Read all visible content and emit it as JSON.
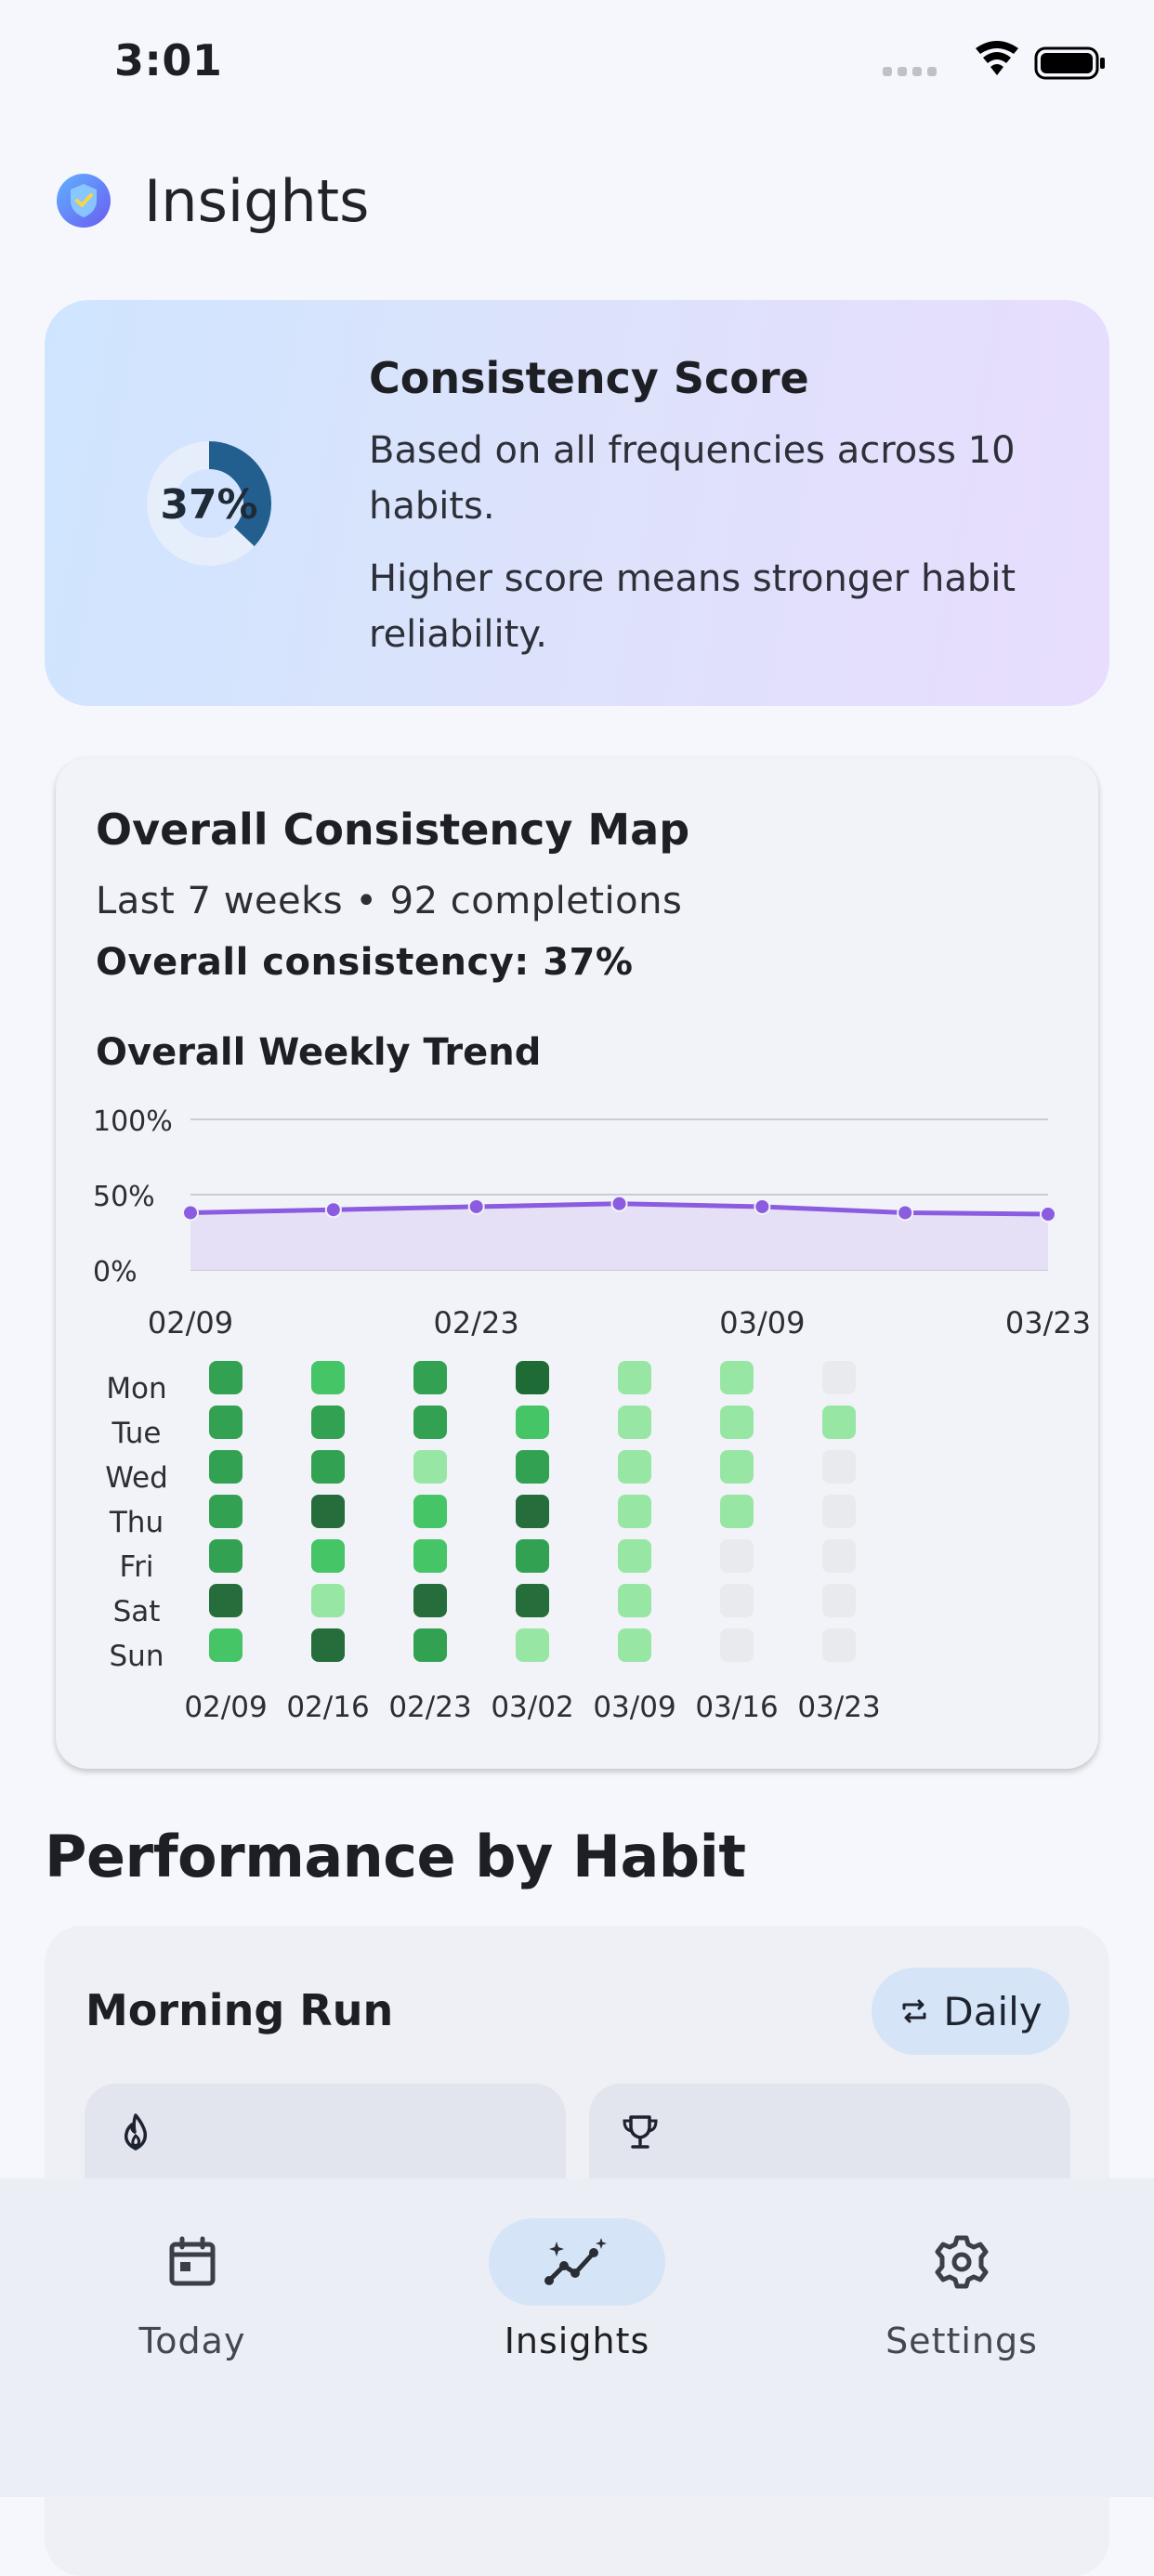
{
  "status_bar": {
    "time": "3:01"
  },
  "header": {
    "title": "Insights",
    "logo_icon": "shield-check-logo"
  },
  "score_card": {
    "value_label": "37%",
    "value": 0.37,
    "title": "Consistency Score",
    "description": "Based on all frequencies across 10 habits.",
    "description2": "Higher score means stronger habit reliability."
  },
  "map_card": {
    "title": "Overall Consistency Map",
    "subtitle": "Last 7 weeks • 92 completions",
    "overall": "Overall consistency: 37%",
    "trend_title": "Overall Weekly Trend"
  },
  "chart_data": [
    {
      "type": "line",
      "title": "Overall Weekly Trend",
      "x": [
        "02/09",
        "02/16",
        "02/23",
        "03/02",
        "03/09",
        "03/16",
        "03/23"
      ],
      "x_tick_labels": [
        "02/09",
        "02/23",
        "03/09",
        "03/23"
      ],
      "y_tick_labels": [
        "100%",
        "50%",
        "0%"
      ],
      "ylim": [
        0,
        100
      ],
      "series": [
        {
          "values": [
            38,
            40,
            42,
            44,
            42,
            38,
            37
          ]
        }
      ],
      "color": "#8b5be0",
      "grid": true
    },
    {
      "type": "heatmap",
      "rows": [
        "Mon",
        "Tue",
        "Wed",
        "Thu",
        "Fri",
        "Sat",
        "Sun"
      ],
      "columns": [
        "02/09",
        "02/16",
        "02/23",
        "03/02",
        "03/09",
        "03/16",
        "03/23"
      ],
      "levels": [
        [
          2,
          3,
          2,
          0,
          4,
          4,
          5
        ],
        [
          2,
          2,
          2,
          3,
          4,
          4,
          4
        ],
        [
          2,
          2,
          4,
          2,
          4,
          4,
          5
        ],
        [
          2,
          1,
          3,
          1,
          4,
          4,
          5
        ],
        [
          2,
          3,
          3,
          2,
          4,
          5,
          5
        ],
        [
          1,
          4,
          1,
          1,
          4,
          5,
          5
        ],
        [
          3,
          1,
          2,
          4,
          4,
          5,
          5
        ]
      ],
      "level_colors": [
        "#1f6b36",
        "#256d3a",
        "#33a152",
        "#46c566",
        "#98e6a4",
        "#e9eaee"
      ]
    }
  ],
  "performance": {
    "heading": "Performance by Habit",
    "habit_name": "Morning Run",
    "frequency_label": "Daily",
    "stat_icons": [
      "flame-icon",
      "trophy-icon"
    ]
  },
  "bottom_nav": {
    "items": [
      {
        "label": "Today",
        "icon": "calendar-icon"
      },
      {
        "label": "Insights",
        "icon": "sparkle-chart-icon",
        "active": true
      },
      {
        "label": "Settings",
        "icon": "gear-icon"
      }
    ]
  }
}
